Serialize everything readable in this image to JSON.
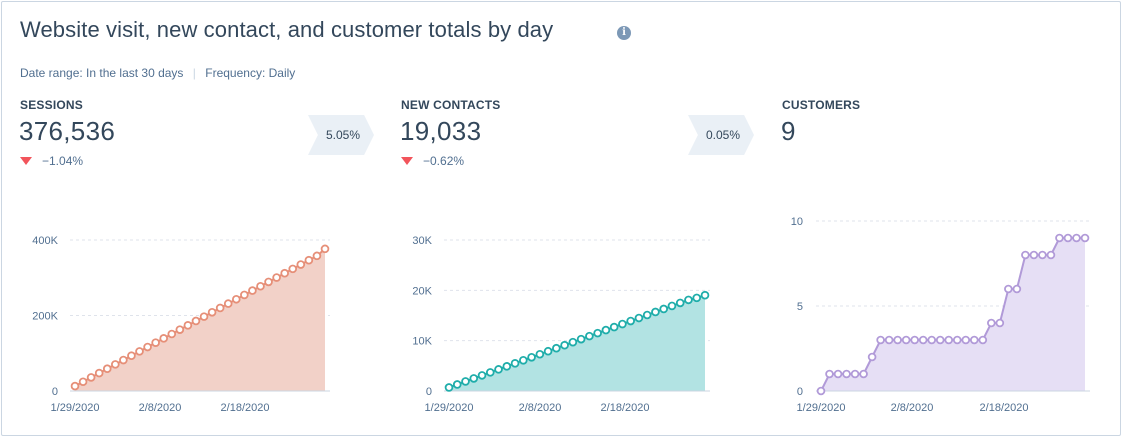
{
  "header": {
    "title": "Website visit, new contact, and customer totals by day",
    "info_icon": "info-icon",
    "date_range": "Date range:  In the last 30 days",
    "separator": "|",
    "frequency": "Frequency:  Daily"
  },
  "metrics": [
    {
      "label": "SESSIONS",
      "value": "376,536",
      "delta": "−1.04%"
    },
    {
      "label": "NEW CONTACTS",
      "value": "19,033",
      "delta": "−0.62%"
    },
    {
      "label": "CUSTOMERS",
      "value": "9"
    }
  ],
  "conversions": [
    "5.05%",
    "0.05%"
  ],
  "colors": {
    "sessions_line": "#e68f78",
    "sessions_fill": "#f2d1c8",
    "contacts_line": "#1fadaa",
    "contacts_fill": "#b2e3e3",
    "customers_line": "#b19ad8",
    "customers_fill": "#e6dff5",
    "negative_delta": "#f2545b"
  },
  "chart_data": [
    {
      "type": "area",
      "name": "Sessions",
      "x_ticks": [
        "1/29/2020",
        "2/8/2020",
        "2/18/2020"
      ],
      "y_ticks": [
        "0",
        "200K",
        "400K"
      ],
      "ylim": [
        0,
        400000
      ],
      "grid": true,
      "values": [
        13000,
        24500,
        36000,
        47500,
        59000,
        70500,
        82000,
        93500,
        105000,
        116500,
        128000,
        139500,
        151000,
        162500,
        174000,
        185500,
        197000,
        208500,
        220000,
        231500,
        243000,
        254500,
        266000,
        277500,
        289000,
        300500,
        312000,
        323500,
        335000,
        346500,
        358000,
        376536
      ]
    },
    {
      "type": "area",
      "name": "New contacts",
      "x_ticks": [
        "1/29/2020",
        "2/8/2020",
        "2/18/2020"
      ],
      "y_ticks": [
        "0",
        "10K",
        "20K",
        "30K"
      ],
      "ylim": [
        0,
        30000
      ],
      "grid": true,
      "values": [
        700,
        1300,
        1900,
        2500,
        3100,
        3700,
        4300,
        4900,
        5500,
        6100,
        6700,
        7300,
        7900,
        8500,
        9100,
        9700,
        10300,
        10900,
        11500,
        12100,
        12700,
        13300,
        13900,
        14500,
        15100,
        15700,
        16300,
        16900,
        17500,
        18100,
        18500,
        19033
      ]
    },
    {
      "type": "area",
      "name": "Customers",
      "x_ticks": [
        "1/29/2020",
        "2/8/2020",
        "2/18/2020"
      ],
      "y_ticks": [
        "0",
        "5",
        "10"
      ],
      "ylim": [
        0,
        10
      ],
      "grid": true,
      "values": [
        0,
        1,
        1,
        1,
        1,
        1,
        2,
        3,
        3,
        3,
        3,
        3,
        3,
        3,
        3,
        3,
        3,
        3,
        3,
        3,
        4,
        4,
        6,
        6,
        8,
        8,
        8,
        8,
        9,
        9,
        9,
        9
      ]
    }
  ]
}
